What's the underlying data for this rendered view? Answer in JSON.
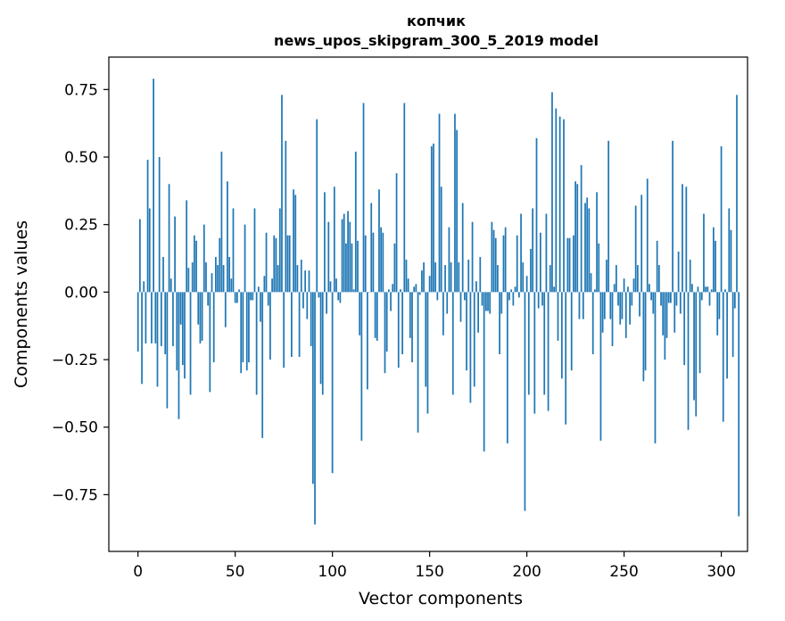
{
  "chart_data": {
    "type": "bar",
    "title": "копчик",
    "subtitle": "news_upos_skipgram_300_5_2019 model",
    "xlabel": "Vector components",
    "ylabel": "Components values",
    "xlim": [
      -15,
      313.5
    ],
    "ylim": [
      -0.96,
      0.87
    ],
    "xticks": [
      0,
      50,
      100,
      150,
      200,
      250,
      300
    ],
    "xtick_labels": [
      "0",
      "50",
      "100",
      "150",
      "200",
      "250",
      "300"
    ],
    "yticks": [
      -0.75,
      -0.5,
      -0.25,
      0.0,
      0.25,
      0.5,
      0.75
    ],
    "ytick_labels": [
      "−0.75",
      "−0.50",
      "−0.25",
      "0.00",
      "0.25",
      "0.50",
      "0.75"
    ],
    "color": "#1f77b4",
    "values": [
      -0.22,
      0.27,
      -0.34,
      0.04,
      -0.19,
      0.49,
      0.31,
      -0.19,
      0.79,
      -0.19,
      -0.35,
      0.5,
      -0.2,
      0.13,
      -0.23,
      -0.43,
      0.4,
      0.05,
      -0.2,
      0.28,
      -0.29,
      -0.47,
      -0.12,
      -0.27,
      -0.32,
      0.34,
      0.09,
      -0.38,
      0.11,
      0.21,
      0.19,
      -0.12,
      -0.19,
      -0.18,
      0.25,
      0.11,
      -0.05,
      -0.37,
      0.07,
      -0.26,
      0.13,
      0.1,
      0.2,
      0.52,
      0.1,
      -0.13,
      0.41,
      0.13,
      0.05,
      0.31,
      -0.04,
      -0.04,
      0.01,
      -0.3,
      -0.26,
      0.25,
      -0.29,
      -0.26,
      -0.03,
      -0.03,
      0.31,
      -0.38,
      0.02,
      -0.11,
      -0.54,
      0.06,
      0.22,
      -0.05,
      -0.25,
      0.05,
      0.21,
      0.2,
      0.1,
      0.31,
      0.73,
      -0.28,
      0.56,
      0.21,
      0.21,
      -0.24,
      0.38,
      0.36,
      0.1,
      -0.24,
      0.12,
      -0.06,
      0.08,
      -0.1,
      0.08,
      -0.2,
      -0.71,
      -0.86,
      0.64,
      -0.02,
      -0.34,
      -0.38,
      0.37,
      -0.08,
      0.26,
      0.04,
      -0.67,
      0.39,
      0.05,
      -0.03,
      -0.04,
      0.27,
      0.29,
      0.18,
      0.3,
      0.26,
      0.18,
      0.01,
      0.52,
      0.19,
      -0.16,
      -0.55,
      0.7,
      0.21,
      -0.36,
      0.0,
      0.33,
      0.22,
      -0.17,
      -0.18,
      0.38,
      0.24,
      0.22,
      -0.3,
      -0.22,
      0.01,
      -0.07,
      0.03,
      0.18,
      0.44,
      -0.28,
      0.01,
      -0.23,
      0.7,
      0.12,
      0.05,
      -0.17,
      -0.26,
      0.02,
      0.03,
      -0.52,
      -0.01,
      0.08,
      0.11,
      -0.35,
      -0.45,
      0.06,
      0.54,
      0.55,
      0.11,
      -0.03,
      0.66,
      0.39,
      -0.16,
      0.1,
      -0.08,
      0.24,
      0.11,
      -0.38,
      0.66,
      0.6,
      0.11,
      -0.11,
      0.33,
      -0.03,
      -0.29,
      0.12,
      -0.41,
      0.26,
      -0.35,
      0.04,
      -0.15,
      0.13,
      -0.05,
      -0.59,
      -0.07,
      -0.07,
      -0.08,
      0.26,
      0.23,
      0.2,
      0.1,
      -0.23,
      -0.08,
      0.21,
      0.24,
      -0.56,
      -0.03,
      0.01,
      -0.05,
      0.02,
      0.21,
      -0.02,
      0.29,
      0.11,
      -0.81,
      0.06,
      -0.38,
      0.16,
      0.31,
      -0.45,
      0.57,
      -0.06,
      0.22,
      -0.05,
      -0.38,
      0.29,
      -0.44,
      0.1,
      0.74,
      0.02,
      0.68,
      -0.18,
      0.65,
      -0.32,
      0.64,
      -0.49,
      0.2,
      0.2,
      -0.29,
      0.21,
      0.41,
      0.4,
      -0.1,
      0.47,
      -0.1,
      0.33,
      0.35,
      0.31,
      0.07,
      -0.23,
      0.01,
      0.37,
      0.18,
      -0.55,
      -0.15,
      -0.1,
      0.12,
      0.56,
      -0.1,
      -0.2,
      0.03,
      0.1,
      -0.05,
      -0.12,
      -0.1,
      0.05,
      -0.17,
      0.02,
      -0.12,
      -0.05,
      0.05,
      0.32,
      0.1,
      -0.09,
      0.36,
      -0.33,
      -0.29,
      0.42,
      0.03,
      -0.03,
      -0.08,
      -0.56,
      0.19,
      0.1,
      -0.05,
      -0.16,
      -0.25,
      -0.17,
      -0.04,
      -0.04,
      0.56,
      -0.15,
      -0.05,
      0.15,
      -0.08,
      0.4,
      -0.27,
      0.39,
      -0.51,
      0.12,
      0.03,
      -0.4,
      -0.46,
      0.02,
      -0.3,
      -0.03,
      0.29,
      0.02,
      0.02,
      -0.05,
      0.01,
      0.24,
      0.19,
      -0.16,
      -0.1,
      0.54,
      -0.48,
      0.01,
      -0.32,
      0.31,
      0.23,
      -0.24,
      -0.06,
      0.73,
      -0.83
    ]
  }
}
